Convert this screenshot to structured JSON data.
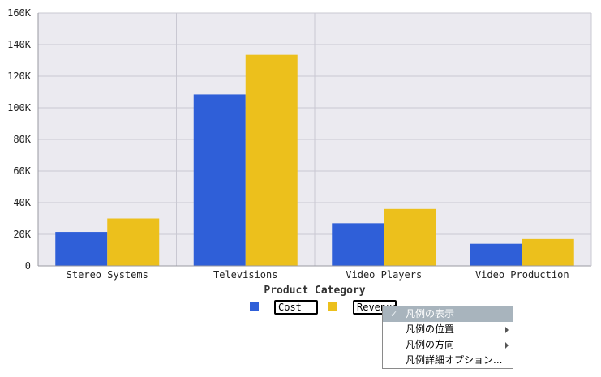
{
  "chart_data": {
    "type": "bar",
    "categories": [
      "Stereo Systems",
      "Televisions",
      "Video Players",
      "Video Production"
    ],
    "series": [
      {
        "name": "Cost",
        "color": "#2f5fd8",
        "values": [
          21500,
          108500,
          27000,
          14000
        ]
      },
      {
        "name": "Revenue",
        "color": "#ecc01c",
        "values": [
          30000,
          133500,
          36000,
          17000
        ]
      }
    ],
    "xlabel": "Product Category",
    "ylabel": "",
    "ylim": [
      0,
      160000
    ],
    "yticks": [
      0,
      20000,
      40000,
      60000,
      80000,
      100000,
      120000,
      140000,
      160000
    ],
    "ytick_labels": [
      "0",
      "20K",
      "40K",
      "60K",
      "80K",
      "100K",
      "120K",
      "140K",
      "160K"
    ],
    "grid": true,
    "plot_background": "#ebeaf0",
    "legend_position": "bottom"
  },
  "legend": {
    "items": [
      {
        "label": "Cost",
        "color": "#2f5fd8"
      },
      {
        "label": "Revenue",
        "color": "#ecc01c"
      }
    ]
  },
  "context_menu": {
    "items": [
      {
        "label": "凡例の表示",
        "checked": true,
        "highlighted": true,
        "submenu": false
      },
      {
        "label": "凡例の位置",
        "checked": false,
        "highlighted": false,
        "submenu": true
      },
      {
        "label": "凡例の方向",
        "checked": false,
        "highlighted": false,
        "submenu": true
      },
      {
        "label": "凡例詳細オプション...",
        "checked": false,
        "highlighted": false,
        "submenu": false
      }
    ],
    "check_glyph": "✓"
  }
}
